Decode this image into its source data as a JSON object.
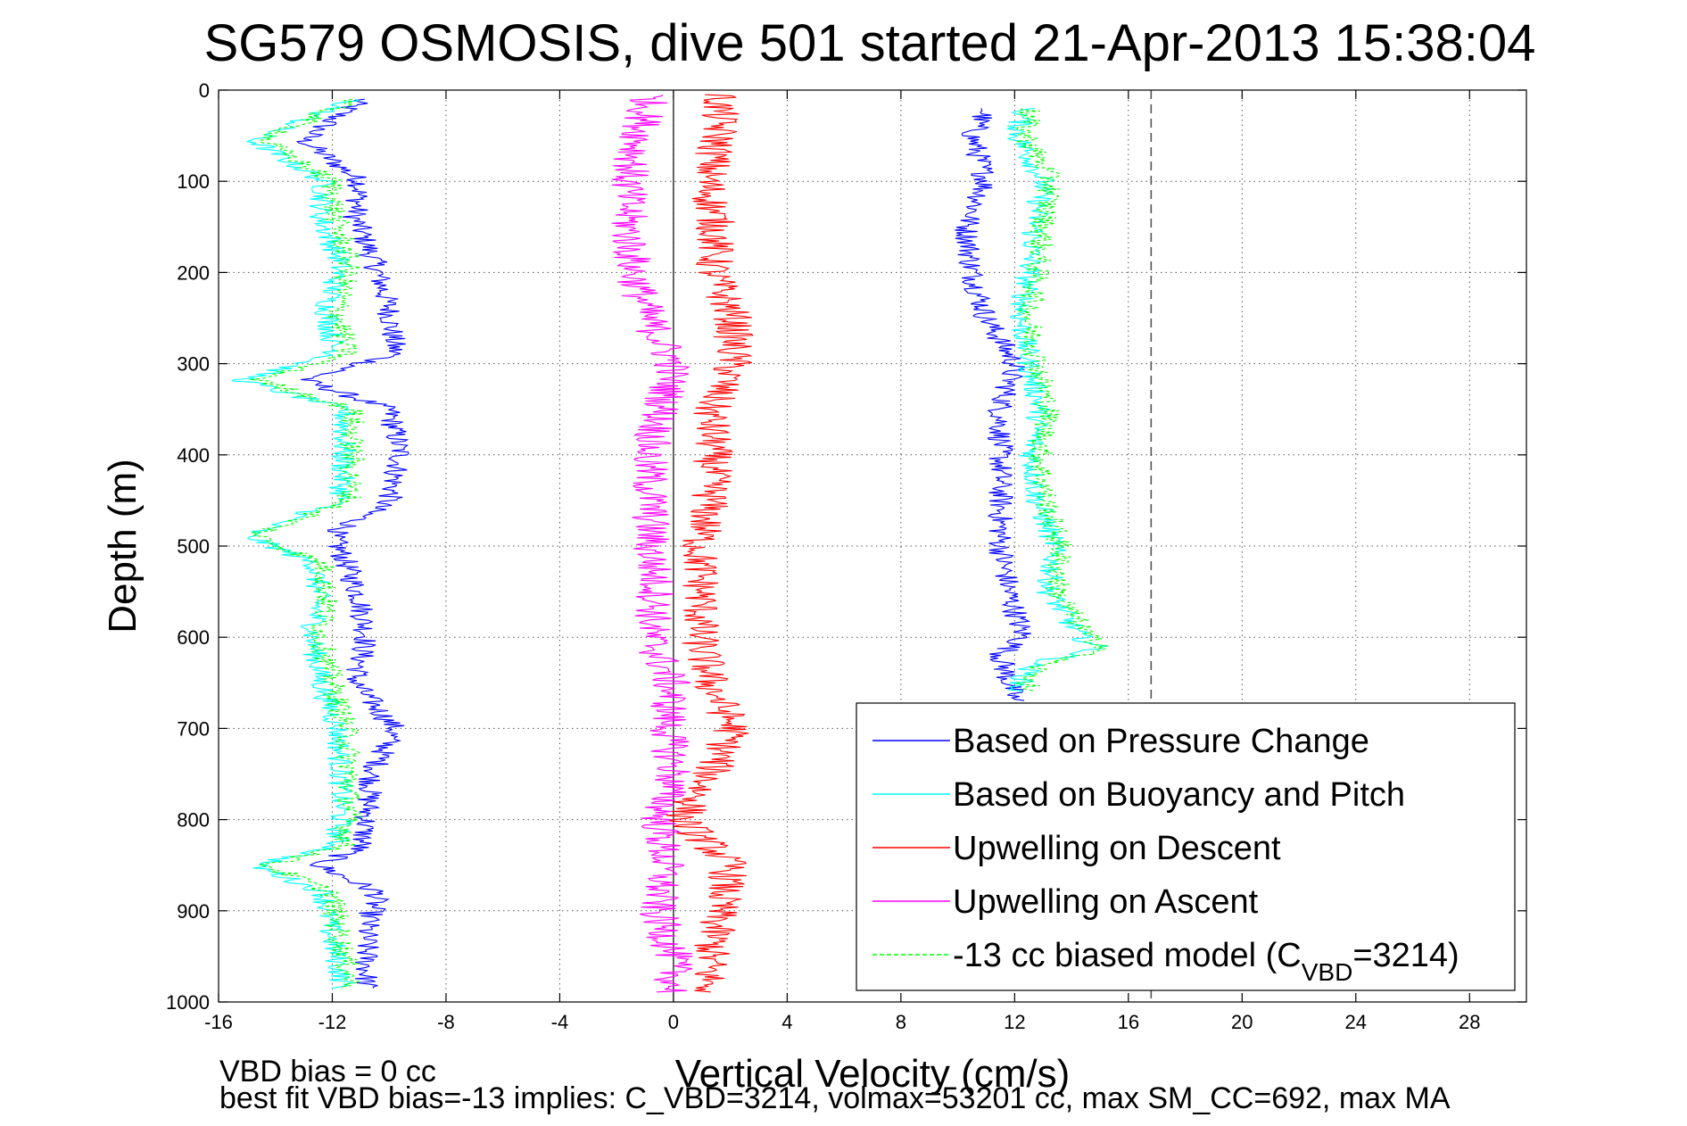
{
  "chart_data": {
    "type": "line",
    "title": "SG579 OSMOSIS, dive 501 started 21-Apr-2013 15:38:04",
    "xlabel": "Vertical Velocity (cm/s)",
    "ylabel": "Depth (m)",
    "xlim": [
      -16,
      30
    ],
    "ylim": [
      0,
      1000
    ],
    "y_reversed": true,
    "grid": true,
    "x_ticks": [
      "-16",
      "-12",
      "-8",
      "-4",
      "0",
      "4",
      "8",
      "12",
      "16",
      "20",
      "24",
      "28"
    ],
    "y_ticks": [
      "0",
      "100",
      "200",
      "300",
      "400",
      "500",
      "600",
      "700",
      "800",
      "900",
      "1000"
    ],
    "legend_position": "bottom-right",
    "dashed_reference_x": 16.8,
    "series": [
      {
        "name": "Based on Pressure Change",
        "color": "#0000ff",
        "style": "solid",
        "descent": {
          "depth": [
            10,
            55,
            100,
            140,
            190,
            240,
            290,
            318,
            350,
            400,
            450,
            488,
            520,
            560,
            600,
            650,
            700,
            750,
            800,
            830,
            850,
            880,
            920,
            985
          ],
          "velocity": [
            -11,
            -13,
            -11,
            -11.2,
            -10.5,
            -10,
            -9.8,
            -13,
            -10,
            -9.6,
            -10,
            -12,
            -11.5,
            -11,
            -10.8,
            -11.2,
            -9.8,
            -10.6,
            -10.8,
            -11,
            -12.5,
            -10.4,
            -10.8,
            -10.8
          ]
        },
        "ascent": {
          "depth": [
            20,
            50,
            100,
            150,
            200,
            250,
            300,
            350,
            400,
            450,
            500,
            550,
            600,
            620,
            650,
            670
          ],
          "velocity": [
            11,
            10.5,
            11,
            10.3,
            10.5,
            11,
            12,
            11.5,
            11.5,
            11.5,
            11.5,
            11.8,
            12.3,
            11.5,
            11.8,
            12
          ]
        }
      },
      {
        "name": "Based on Buoyancy and Pitch",
        "color": "#00ffff",
        "style": "solid",
        "descent": {
          "depth": [
            10,
            55,
            100,
            140,
            190,
            240,
            290,
            318,
            350,
            400,
            450,
            488,
            520,
            560,
            600,
            650,
            700,
            750,
            800,
            830,
            850,
            880,
            920,
            985
          ],
          "velocity": [
            -11.2,
            -14.8,
            -12.3,
            -12.4,
            -11.7,
            -12.2,
            -11.9,
            -15.2,
            -11.6,
            -11.6,
            -11.7,
            -15,
            -12.6,
            -12.5,
            -12.7,
            -12.4,
            -11.8,
            -11.7,
            -11.7,
            -11.9,
            -14.7,
            -12.3,
            -12.1,
            -11.6
          ]
        },
        "ascent": {
          "depth": [
            20,
            50,
            100,
            150,
            200,
            250,
            300,
            350,
            400,
            450,
            500,
            550,
            600,
            612,
            630,
            660
          ],
          "velocity": [
            12.3,
            12.1,
            13,
            12.7,
            12.5,
            12.2,
            12.5,
            12.9,
            12.6,
            12.8,
            13.4,
            13.2,
            14.3,
            15,
            12.6,
            12
          ]
        }
      },
      {
        "name": "Upwelling on Descent",
        "color": "#ff0000",
        "style": "solid",
        "descent": {
          "depth": [
            5,
            50,
            100,
            150,
            200,
            250,
            300,
            350,
            400,
            450,
            500,
            550,
            600,
            650,
            700,
            750,
            800,
            850,
            900,
            950,
            990
          ],
          "velocity": [
            1.6,
            1.6,
            1.2,
            1.5,
            1.4,
            2.1,
            2.1,
            1.3,
            1.4,
            1.3,
            0.9,
            1.0,
            0.9,
            1.3,
            2.1,
            1.3,
            0.3,
            2.0,
            1.6,
            1.3,
            1.2
          ]
        }
      },
      {
        "name": "Upwelling on Ascent",
        "color": "#ff00ff",
        "style": "solid",
        "ascent": {
          "depth": [
            5,
            50,
            100,
            150,
            200,
            250,
            300,
            350,
            400,
            450,
            500,
            550,
            600,
            650,
            700,
            750,
            800,
            850,
            900,
            950,
            990
          ],
          "velocity": [
            -0.8,
            -1.2,
            -1.6,
            -1.6,
            -1.4,
            -0.9,
            0.0,
            -0.4,
            -0.9,
            -0.8,
            -0.8,
            -0.6,
            -0.8,
            -0.1,
            -0.2,
            0.0,
            -0.5,
            -0.3,
            -0.6,
            0.0,
            0.0
          ]
        }
      },
      {
        "name": "-13 cc biased model",
        "color": "#00ff00",
        "style": "dashed",
        "descent": {
          "depth": [
            10,
            55,
            100,
            140,
            190,
            240,
            290,
            318,
            350,
            400,
            450,
            488,
            520,
            560,
            600,
            650,
            700,
            750,
            800,
            830,
            850,
            880,
            920,
            985
          ],
          "velocity": [
            -11.3,
            -14.4,
            -12,
            -11.9,
            -11.4,
            -11.8,
            -11.5,
            -14.6,
            -11.3,
            -11.3,
            -11.4,
            -14.7,
            -12.3,
            -12.2,
            -12.4,
            -12,
            -11.5,
            -11.4,
            -11.4,
            -11.6,
            -14.3,
            -12,
            -11.8,
            -11.3
          ]
        },
        "ascent": {
          "depth": [
            20,
            50,
            100,
            150,
            200,
            250,
            300,
            350,
            400,
            450,
            500,
            550,
            600,
            612,
            630,
            660
          ],
          "velocity": [
            12.5,
            12.4,
            13.3,
            13,
            12.8,
            12.5,
            12.8,
            13.2,
            12.9,
            13.1,
            13.6,
            13.5,
            14.6,
            15.3,
            12.9,
            12.3
          ]
        }
      }
    ],
    "legend_subscript": "VBD",
    "legend_suffix_pre": " (C",
    "legend_suffix_post": "=3214)"
  },
  "footer": {
    "line1": "VBD bias = 0 cc",
    "line2": "best fit VBD bias=-13 implies: C_VBD=3214, volmax=53201 cc, max SM_CC=692, max MA"
  }
}
